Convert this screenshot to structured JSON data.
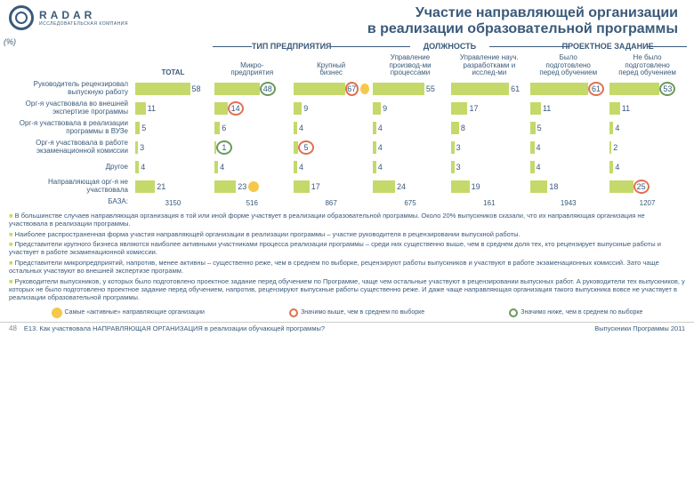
{
  "brand": "RADAR",
  "brand_sub": "ИССЛЕДОВАТЕЛЬСКАЯ КОМПАНИЯ",
  "title_l1": "Участие направляющей организации",
  "title_l2": "в реализации образовательной программы",
  "pct": "(%)",
  "groupHeaders": [
    "ТИП ПРЕДПРИЯТИЯ",
    "ДОЛЖНОСТЬ",
    "ПРОЕКТНОЕ ЗАДАНИЕ"
  ],
  "columns": [
    "TOTAL",
    "Микро-\nпредприятия",
    "Крупный\nбизнес",
    "Управление\nпроизвод-ми\nпроцессами",
    "Управление науч.\nразработками и\nисслед-ми",
    "Было\nподготовлено\nперед обучением",
    "Не было\nподготовлено\nперед обучением"
  ],
  "rows": [
    {
      "label": "Руководитель рецензировал выпускную работу",
      "v": [
        58,
        48,
        67,
        55,
        61,
        61,
        53
      ],
      "hi": [
        null,
        "lo",
        "hi",
        null,
        null,
        "hi",
        "lo"
      ],
      "smiley": [
        false,
        false,
        true,
        false,
        false,
        false,
        false
      ]
    },
    {
      "label": "Орг-я участвовала во внешней экспертизе программы",
      "v": [
        11,
        14,
        9,
        9,
        17,
        11,
        11
      ],
      "hi": [
        null,
        "hi",
        null,
        null,
        null,
        null,
        null
      ]
    },
    {
      "label": "Орг-я участвовала в реализации программы в ВУЗе",
      "v": [
        5,
        6,
        4,
        4,
        8,
        5,
        4
      ],
      "hi": [
        null,
        null,
        null,
        null,
        null,
        null,
        null
      ]
    },
    {
      "label": "Орг-я участвовала в работе экзаменационной комиссии",
      "v": [
        3,
        1,
        5,
        4,
        3,
        4,
        2
      ],
      "hi": [
        null,
        "lo",
        "hi",
        null,
        null,
        null,
        null
      ]
    },
    {
      "label": "Другое",
      "v": [
        4,
        4,
        4,
        4,
        3,
        4,
        4
      ],
      "hi": [
        null,
        null,
        null,
        null,
        null,
        null,
        null
      ]
    },
    {
      "label": "Направляющая орг-я не участвовала",
      "v": [
        21,
        23,
        17,
        24,
        19,
        18,
        25
      ],
      "hi": [
        null,
        null,
        null,
        null,
        null,
        null,
        "hi"
      ],
      "smiley": [
        false,
        true,
        false,
        false,
        false,
        false,
        false
      ]
    }
  ],
  "base_label": "БАЗА:",
  "bases": [
    "3150",
    "516",
    "867",
    "675",
    "161",
    "1943",
    "1207"
  ],
  "bar_color": "#c5d96a",
  "hi_color": "#e07050",
  "lo_color": "#6a9a5a",
  "bullets": [
    "В большинстве случаев направляющая организация в той или иной форме участвует в реализации образовательной программы. Около 20% выпускников сказали, что их направляющая организация не участвовала в реализации программы.",
    "Наиболее распространенная форма участия направляющей организации в реализации программы – участие руководителя в рецензировании выпускной работы.",
    "Представители крупного бизнеса являются наиболее активными участниками процесса реализации программы – среди них существенно выше, чем в среднем доля тех, кто рецензирует выпускные работы и участвует в работе экзаменационной комиссии.",
    "Представители микропредприятий, напротив, менее активны – существенно реже, чем в среднем по выборке, рецензируют работы выпускников и участвуют в работе экзаменационных комиссий. Зато чаще остальных участвуют во внешней экспертизе программ.",
    "Руководители выпускников, у которых было подготовлено проектное задание перед обучением по Программе, чаще чем остальные участвуют в рецензировании выпускных работ. А руководители тех выпускников, у которых не было подготовлено проектное задание перед обучением, напротив, рецензируют выпускные работы существенно реже. И даже чаще направляющая организация такого выпускника вовсе не участвует в реализации образовательной программы."
  ],
  "legend": [
    {
      "icon": "smiley",
      "text": "Самые «активные» направляющие организации"
    },
    {
      "icon": "hi",
      "text": "Значимо выше, чем в среднем по выборке"
    },
    {
      "icon": "lo",
      "text": "Значимо ниже, чем в среднем по выборке"
    }
  ],
  "page": "48",
  "footer_q": "E13. Как участвовала НАПРАВЛЯЮЩАЯ ОРГАНИЗАЦИЯ в реализации обучающей программы?",
  "footer_r": "Выпускники Программы 2011",
  "max": 80
}
